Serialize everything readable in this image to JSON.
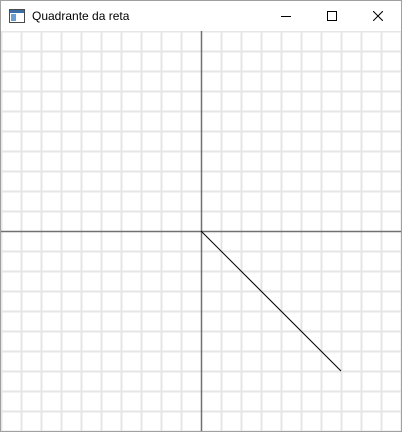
{
  "window": {
    "title": "Quadrante da reta",
    "app_icon": "window-app-icon",
    "buttons": {
      "minimize_icon": "minimize-icon",
      "maximize_icon": "maximize-icon",
      "close_icon": "close-icon"
    }
  },
  "canvas": {
    "background": "#ffffff",
    "grid_color": "#e6e6e6",
    "axis_color": "#707070",
    "line_color": "#000000",
    "grid_step": 20,
    "segment": {
      "from": [
        0,
        0
      ],
      "to": [
        140,
        -140
      ]
    }
  }
}
